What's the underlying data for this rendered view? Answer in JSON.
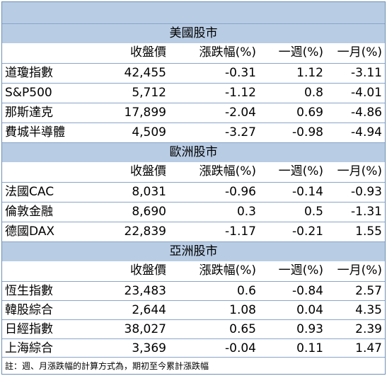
{
  "sections": [
    {
      "title": "美國股市",
      "headers": [
        "收盤價",
        "漲跌幅(%)",
        "一週(%)",
        "一月(%)"
      ],
      "rows": [
        {
          "name": "道瓊指數",
          "close": "42,455",
          "change": "-0.31",
          "week": "1.12",
          "month": "-3.11"
        },
        {
          "name": "S&P500",
          "close": "5,712",
          "change": "-1.12",
          "week": "0.8",
          "month": "-4.01"
        },
        {
          "name": "那斯達克",
          "close": "17,899",
          "change": "-2.04",
          "week": "0.69",
          "month": "-4.86"
        },
        {
          "name": "費城半導體",
          "close": "4,509",
          "change": "-3.27",
          "week": "-0.98",
          "month": "-4.94"
        }
      ]
    },
    {
      "title": "歐洲股市",
      "headers": [
        "收盤價",
        "漲跌幅(%)",
        "一週(%)",
        "一月(%)"
      ],
      "rows": [
        {
          "name": "法國CAC",
          "close": "8,031",
          "change": "-0.96",
          "week": "-0.14",
          "month": "-0.93"
        },
        {
          "name": "倫敦金融",
          "close": "8,690",
          "change": "0.3",
          "week": "0.5",
          "month": "-1.31"
        },
        {
          "name": "德國DAX",
          "close": "22,839",
          "change": "-1.17",
          "week": "-0.21",
          "month": "1.55"
        }
      ]
    },
    {
      "title": "亞洲股市",
      "headers": [
        "收盤價",
        "漲跌幅(%)",
        "一週(%)",
        "一月(%)"
      ],
      "rows": [
        {
          "name": "恆生指數",
          "close": "23,483",
          "change": "0.6",
          "week": "-0.84",
          "month": "2.57"
        },
        {
          "name": "韓股綜合",
          "close": "2,644",
          "change": "1.08",
          "week": "0.04",
          "month": "4.35"
        },
        {
          "name": "日經指數",
          "close": "38,027",
          "change": "0.65",
          "week": "0.93",
          "month": "2.39"
        },
        {
          "name": "上海綜合",
          "close": "3,369",
          "change": "-0.04",
          "week": "0.11",
          "month": "1.47"
        }
      ]
    }
  ],
  "note": "註：週、月漲跌幅的計算方式為，期初至今累計漲跌幅"
}
